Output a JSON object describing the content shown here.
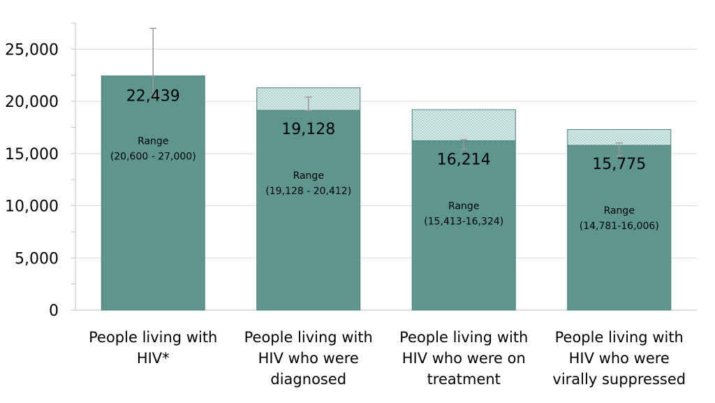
{
  "chart_data": {
    "type": "bar",
    "title": "",
    "xlabel": "",
    "ylabel": "",
    "ylim": [
      0,
      27500
    ],
    "yticks": [
      0,
      5000,
      10000,
      15000,
      20000,
      25000
    ],
    "ytick_labels": [
      "0",
      "5,000",
      "10,000",
      "15,000",
      "20,000",
      "25,000"
    ],
    "grid": true,
    "colors": {
      "bar": "#5e968f",
      "bar_stroke": "#4a7f78",
      "hatch": "#d8ebe9",
      "hatch_dot": "#7fb3ad",
      "error": "#9a9a9a"
    },
    "categories": [
      [
        "People living with",
        "HIV*"
      ],
      [
        "People living with",
        "HIV who were",
        "diagnosed"
      ],
      [
        "People living with",
        "HIV who were on",
        "treatment"
      ],
      [
        "People living with",
        "HIV who were",
        "virally suppressed"
      ]
    ],
    "values": [
      22439,
      19128,
      16214,
      15775
    ],
    "value_labels": [
      "22,439",
      "19,128",
      "16,214",
      "15,775"
    ],
    "upper_values": [
      22439,
      21300,
      19200,
      17300
    ],
    "error_low": [
      20600,
      19128,
      15413,
      14781
    ],
    "error_high": [
      27000,
      20412,
      16324,
      16006
    ],
    "range_titles": [
      "Range",
      "Range",
      "Range",
      "Range"
    ],
    "range_texts": [
      "(20,600 - 27,000)",
      "(19,128 - 20,412)",
      "(15,413-16,324)",
      "(14,781-16,006)"
    ]
  }
}
